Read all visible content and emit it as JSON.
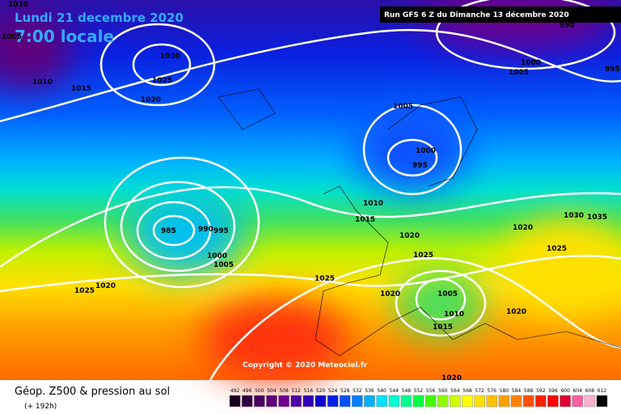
{
  "header": {
    "date": "Lundi 21 decembre 2020",
    "time": "7:00 locale",
    "run": "Run GFS 6 Z du Dimanche 13 décembre 2020"
  },
  "copyright": "Copyright © 2020 Meteociel.fr",
  "footer": {
    "title": "Géop. Z500 & pression au sol",
    "lead": "(+ 192h)"
  },
  "isobar_labels": [
    1010,
    1005,
    1010,
    1015,
    1030,
    1025,
    1020,
    1005,
    1000,
    995,
    1000,
    1005,
    995,
    990,
    1010,
    1015,
    1020,
    1020,
    1030,
    1035,
    1025,
    1025,
    1005,
    1010,
    1015,
    1020,
    1020,
    1025,
    985,
    990,
    995,
    1000,
    1005,
    1025,
    1020,
    1020
  ],
  "legend": {
    "values": [
      492,
      496,
      500,
      504,
      508,
      512,
      516,
      520,
      524,
      528,
      532,
      536,
      540,
      544,
      548,
      552,
      556,
      560,
      564,
      568,
      572,
      576,
      580,
      584,
      588,
      592,
      596,
      600,
      604,
      608,
      612
    ],
    "colors": [
      "#1a0020",
      "#300040",
      "#4a0060",
      "#5e007a",
      "#70008e",
      "#5000a8",
      "#3000b8",
      "#1000d0",
      "#0020e8",
      "#0050ff",
      "#0080ff",
      "#00b0ff",
      "#00e0ff",
      "#00ffd0",
      "#00ff90",
      "#00ff40",
      "#40ff00",
      "#90ff00",
      "#d0ff00",
      "#ffff00",
      "#ffe000",
      "#ffc000",
      "#ffa000",
      "#ff8000",
      "#ff5000",
      "#ff2000",
      "#ff0000",
      "#e00030",
      "#ff60a0",
      "#ffb0d0",
      "#000000"
    ]
  }
}
